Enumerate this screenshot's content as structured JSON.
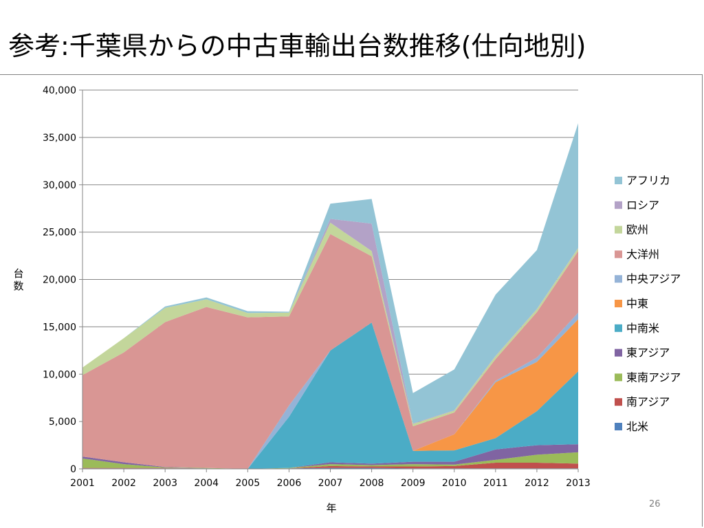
{
  "slide": {
    "title": "参考:千葉県からの中古車輸出台数推移(仕向地別)",
    "page_number": "26"
  },
  "chart_data": {
    "type": "area",
    "stacked": true,
    "title": "",
    "xlabel": "年",
    "ylabel": "台数",
    "ylim": [
      0,
      40000
    ],
    "yticks": [
      0,
      5000,
      10000,
      15000,
      20000,
      25000,
      30000,
      35000,
      40000
    ],
    "ytick_labels": [
      "0",
      "5,000",
      "10,000",
      "15,000",
      "20,000",
      "25,000",
      "30,000",
      "35,000",
      "40,000"
    ],
    "categories": [
      "2001",
      "2002",
      "2003",
      "2004",
      "2005",
      "2006",
      "2007",
      "2008",
      "2009",
      "2010",
      "2011",
      "2012",
      "2013"
    ],
    "grid": true,
    "legend_position": "right",
    "series": [
      {
        "name": "北米",
        "color": "#4f81bd",
        "values": [
          50,
          50,
          50,
          50,
          0,
          50,
          100,
          100,
          50,
          50,
          50,
          50,
          50
        ]
      },
      {
        "name": "南アジア",
        "color": "#c0504d",
        "values": [
          50,
          50,
          50,
          0,
          0,
          0,
          200,
          150,
          200,
          250,
          600,
          600,
          500
        ]
      },
      {
        "name": "東南アジア",
        "color": "#9bbb59",
        "values": [
          1000,
          400,
          50,
          50,
          0,
          50,
          200,
          150,
          250,
          150,
          300,
          850,
          1200
        ]
      },
      {
        "name": "東アジア",
        "color": "#8064a2",
        "values": [
          200,
          200,
          50,
          0,
          0,
          0,
          200,
          150,
          250,
          300,
          1100,
          1000,
          850
        ]
      },
      {
        "name": "中南米",
        "color": "#4bacc6",
        "values": [
          0,
          0,
          0,
          0,
          0,
          5400,
          11800,
          14900,
          1150,
          1200,
          1200,
          3600,
          7700
        ]
      },
      {
        "name": "中東",
        "color": "#f79646",
        "values": [
          0,
          0,
          0,
          0,
          0,
          0,
          0,
          0,
          0,
          1700,
          5900,
          5200,
          5500
        ]
      },
      {
        "name": "中央アジア",
        "color": "#95b3d7",
        "values": [
          0,
          0,
          0,
          0,
          0,
          1200,
          0,
          0,
          0,
          0,
          150,
          450,
          700
        ]
      },
      {
        "name": "大洋州",
        "color": "#d99694",
        "values": [
          8600,
          11600,
          15300,
          17000,
          16000,
          9400,
          12300,
          7000,
          2600,
          2300,
          2300,
          4800,
          6500
        ]
      },
      {
        "name": "欧州",
        "color": "#c3d69b",
        "values": [
          800,
          1500,
          1500,
          800,
          450,
          400,
          1200,
          550,
          250,
          200,
          300,
          300,
          300
        ]
      },
      {
        "name": "ロシア",
        "color": "#b3a2c7",
        "values": [
          0,
          0,
          0,
          0,
          0,
          0,
          400,
          2900,
          50,
          50,
          50,
          50,
          50
        ]
      },
      {
        "name": "アフリカ",
        "color": "#93c4d5",
        "values": [
          0,
          0,
          150,
          200,
          200,
          100,
          1600,
          2600,
          3200,
          4300,
          6450,
          6200,
          13150
        ]
      }
    ]
  }
}
